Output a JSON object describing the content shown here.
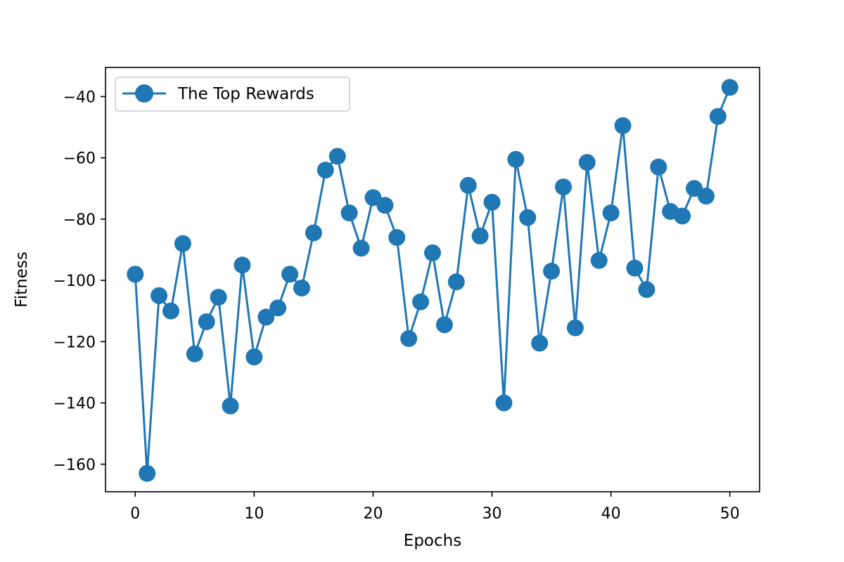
{
  "chart_data": {
    "type": "line",
    "title": "",
    "xlabel": "Epochs",
    "ylabel": "Fitness",
    "xlim": [
      -2.5,
      52.5
    ],
    "ylim": [
      -169,
      -30.5
    ],
    "xticks": [
      0,
      10,
      20,
      30,
      40,
      50
    ],
    "yticks": [
      -160,
      -140,
      -120,
      -100,
      -80,
      -60,
      -40
    ],
    "xtick_labels": [
      "0",
      "10",
      "20",
      "30",
      "40",
      "50"
    ],
    "ytick_labels": [
      "−160",
      "−140",
      "−120",
      "−100",
      "−80",
      "−60",
      "−40"
    ],
    "grid": false,
    "legend_position": "top-left",
    "series": [
      {
        "name": "The Top Rewards",
        "color": "#1f77b4",
        "marker": "circle",
        "x": [
          0,
          1,
          2,
          3,
          4,
          5,
          6,
          7,
          8,
          9,
          10,
          11,
          12,
          13,
          14,
          15,
          16,
          17,
          18,
          19,
          20,
          21,
          22,
          23,
          24,
          25,
          26,
          27,
          28,
          29,
          30,
          31,
          32,
          33,
          34,
          35,
          36,
          37,
          38,
          39,
          40,
          41,
          42,
          43,
          44,
          45,
          46,
          47,
          48,
          49,
          50
        ],
        "y": [
          -98,
          -163,
          -105,
          -110,
          -88,
          -124,
          -113.5,
          -105.5,
          -141,
          -95,
          -125,
          -112,
          -109,
          -98,
          -102.5,
          -84.5,
          -64,
          -59.5,
          -78,
          -89.5,
          -73,
          -75.5,
          -86,
          -119,
          -107,
          -91,
          -114.5,
          -100.5,
          -69,
          -85.5,
          -74.5,
          -140,
          -60.5,
          -79.5,
          -120.5,
          -97,
          -69.5,
          -115.5,
          -61.5,
          -93.5,
          -78,
          -49.5,
          -96,
          -103,
          -63,
          -77.5,
          -79,
          -70,
          -72.5,
          -46.5,
          -37
        ]
      }
    ]
  }
}
